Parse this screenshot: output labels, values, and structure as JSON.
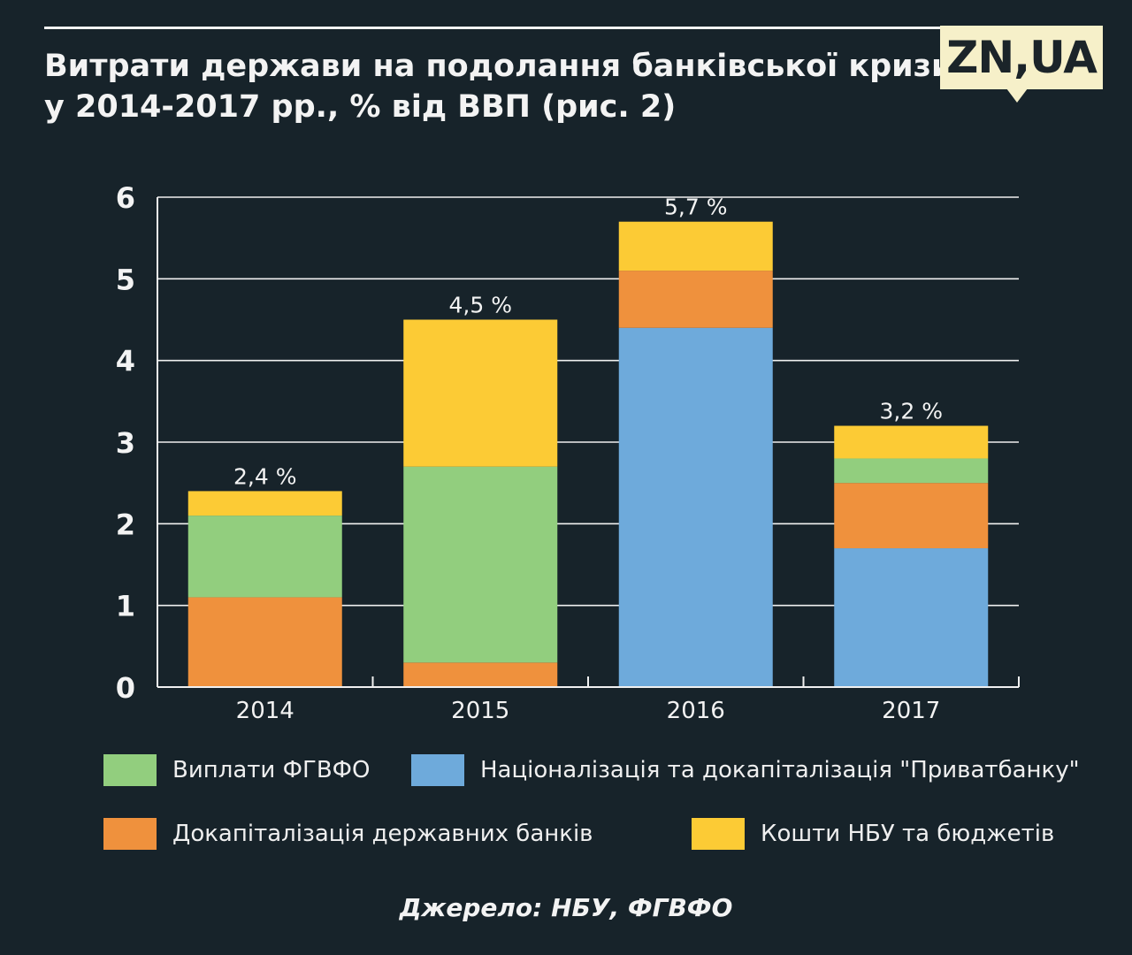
{
  "title": {
    "line1": "Витрати держави на подолання банківської кризи",
    "line2": "у 2014-2017 рр., % від ВВП (рис. 2)"
  },
  "logo": {
    "text": "ZN,UA"
  },
  "source": "Джерело: НБУ, ФГВФО",
  "colors": {
    "background": "#17232a",
    "green": "#92ce7e",
    "blue": "#6eaadb",
    "orange": "#ef913d",
    "yellow": "#fccb35"
  },
  "legend": [
    {
      "key": "fgvfo",
      "label": "Виплати ФГВФО",
      "color": "#92ce7e"
    },
    {
      "key": "privat",
      "label": "Націоналізація та докапіталізація \"Приватбанку\"",
      "color": "#6eaadb"
    },
    {
      "key": "statebanks",
      "label": "Докапіталізація державних банків",
      "color": "#ef913d"
    },
    {
      "key": "nbu",
      "label": "Кошти НБУ та бюджетів",
      "color": "#fccb35"
    }
  ],
  "chart_data": {
    "type": "bar",
    "stacked": true,
    "title": "Витрати держави на подолання банківської кризи у 2014-2017 рр., % від ВВП (рис. 2)",
    "categories": [
      "2014",
      "2015",
      "2016",
      "2017"
    ],
    "ylim": [
      0,
      6
    ],
    "yticks": [
      "0",
      "1",
      "2",
      "3",
      "4",
      "5",
      "6"
    ],
    "grid": true,
    "legend_position": "bottom",
    "totals_labels": [
      "2,4 %",
      "4,5 %",
      "5,7 %",
      "3,2 %"
    ],
    "series": [
      {
        "name": "Націоналізація та докапіталізація \"Приватбанку\"",
        "color": "#6eaadb",
        "values": [
          0,
          0,
          4.4,
          1.7
        ]
      },
      {
        "name": "Докапіталізація державних банків",
        "color": "#ef913d",
        "values": [
          1.1,
          0.3,
          0.7,
          0.8
        ]
      },
      {
        "name": "Виплати ФГВФО",
        "color": "#92ce7e",
        "values": [
          1.0,
          2.4,
          0,
          0.3
        ]
      },
      {
        "name": "Кошти НБУ та бюджетів",
        "color": "#fccb35",
        "values": [
          0.3,
          1.8,
          0.6,
          0.4
        ]
      }
    ]
  }
}
